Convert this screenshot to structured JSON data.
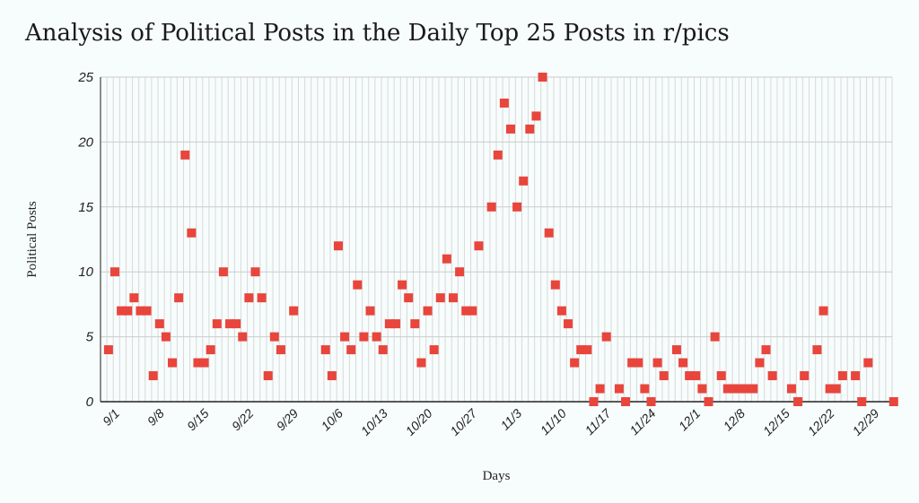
{
  "chart_data": {
    "type": "scatter",
    "title": "Analysis of Political Posts in the Daily Top 25 Posts in r/pics",
    "xlabel": "Days",
    "ylabel": "Political Posts",
    "ylim": [
      0,
      25
    ],
    "yticks": [
      0,
      5,
      10,
      15,
      20,
      25
    ],
    "xticks": [
      "9/1",
      "9/8",
      "9/15",
      "9/22",
      "9/29",
      "10/6",
      "10/13",
      "10/20",
      "10/27",
      "11/3",
      "11/10",
      "11/17",
      "11/24",
      "12/1",
      "12/8",
      "12/15",
      "12/22",
      "12/29"
    ],
    "grid": true,
    "marker_color": "#e8453c",
    "gridline_color": "#cccccc",
    "series": [
      {
        "values": [
          4,
          10,
          7,
          7,
          8,
          7,
          7,
          2,
          6,
          5,
          3,
          8,
          19,
          13,
          3,
          3,
          4,
          6,
          10,
          6,
          6,
          5,
          8,
          10,
          8,
          2,
          5,
          4,
          null,
          7,
          null,
          null,
          null,
          null,
          4,
          2,
          12,
          5,
          4,
          9,
          5,
          7,
          5,
          4,
          6,
          6,
          9,
          8,
          6,
          3,
          7,
          4,
          8,
          11,
          8,
          10,
          7,
          7,
          12,
          null,
          15,
          19,
          23,
          21,
          15,
          17,
          21,
          22,
          25,
          13,
          9,
          7,
          6,
          3,
          4,
          4,
          0,
          1,
          5,
          null,
          1,
          0,
          3,
          3,
          1,
          0,
          3,
          2,
          null,
          4,
          3,
          2,
          2,
          1,
          0,
          5,
          2,
          1,
          1,
          1,
          1,
          1,
          3,
          4,
          2,
          null,
          null,
          1,
          0,
          2,
          null,
          4,
          7,
          1,
          1,
          2,
          null,
          2,
          0,
          3,
          null,
          null,
          null,
          0
        ]
      }
    ]
  }
}
